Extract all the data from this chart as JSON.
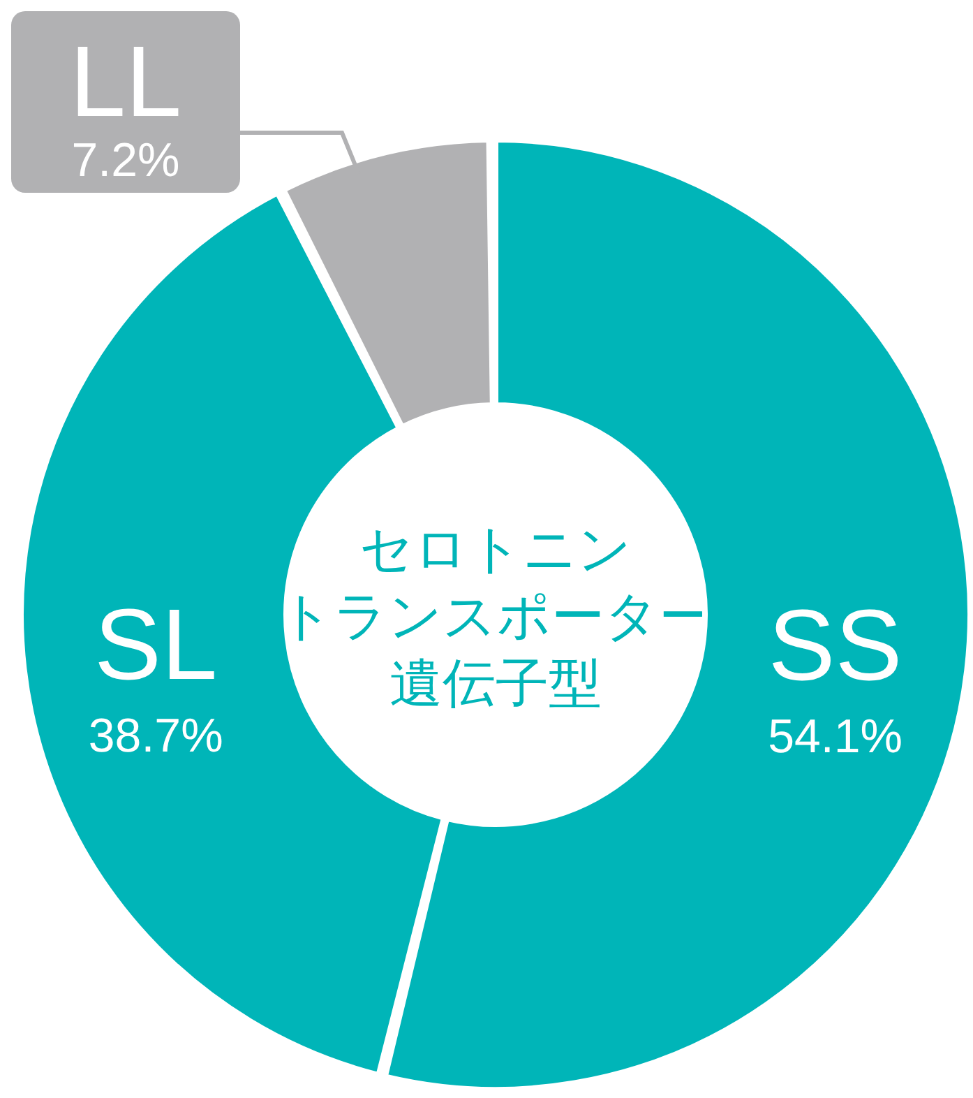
{
  "chart_data": {
    "type": "donut",
    "annotations": [
      "セロトニン",
      "トランスポーター",
      "遺伝子型"
    ],
    "categories": [
      "SS",
      "SL",
      "LL"
    ],
    "values": [
      54.1,
      38.7,
      7.2
    ],
    "colors": [
      "#00b5b8",
      "#00b5b8",
      "#b1b1b3"
    ],
    "value_labels": [
      "54.1%",
      "38.7%",
      "7.2%"
    ],
    "legend": false
  }
}
